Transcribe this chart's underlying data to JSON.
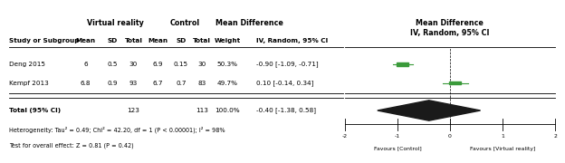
{
  "col_headers": {
    "vr": "Virtual reality",
    "ctrl": "Control",
    "md": "Mean Difference",
    "forest": "Mean Difference\nIV, Random, 95% CI"
  },
  "studies": [
    {
      "name": "Deng 2015",
      "vr_mean": 6,
      "vr_sd": 0.5,
      "vr_n": 30,
      "ctrl_mean": 6.9,
      "ctrl_sd": 0.15,
      "ctrl_n": 30,
      "weight": "50.3%",
      "md": -0.9,
      "ci_lo": -1.09,
      "ci_hi": -0.71,
      "md_text": "-0.90 [-1.09, -0.71]"
    },
    {
      "name": "Kempf 2013",
      "vr_mean": 6.8,
      "vr_sd": 0.9,
      "vr_n": 93,
      "ctrl_mean": 6.7,
      "ctrl_sd": 0.7,
      "ctrl_n": 83,
      "weight": "49.7%",
      "md": 0.1,
      "ci_lo": -0.14,
      "ci_hi": 0.34,
      "md_text": "0.10 [-0.14, 0.34]"
    }
  ],
  "total": {
    "n_vr": 123,
    "n_ctrl": 113,
    "weight": "100.0%",
    "md": -0.4,
    "ci_lo": -1.38,
    "ci_hi": 0.58,
    "md_text": "-0.40 [-1.38, 0.58]"
  },
  "footnotes": [
    "Heterogeneity: Tau² = 0.49; Chi² = 42.20, df = 1 (P < 0.00001); I² = 98%",
    "Test for overall effect: Z = 0.81 (P = 0.42)"
  ],
  "xlim": [
    -2,
    2
  ],
  "xticks": [
    -2,
    -1,
    0,
    1,
    2
  ],
  "favour_left": "Favours [Control]",
  "favour_right": "Favours [Virtual reality]",
  "marker_color": "#3a9a3a",
  "diamond_color": "#1a1a1a",
  "bg_color": "#ffffff",
  "text_color": "#000000"
}
